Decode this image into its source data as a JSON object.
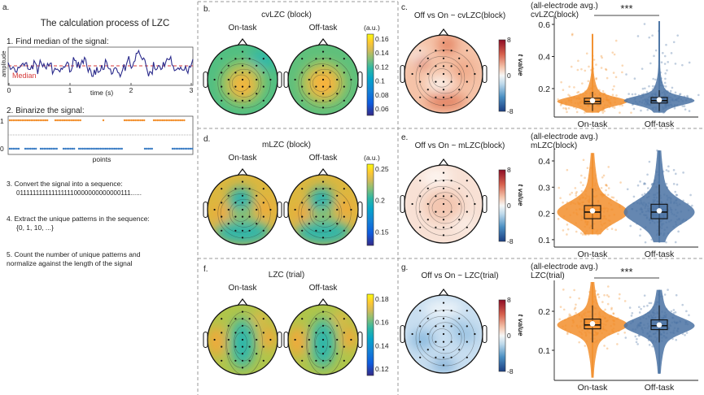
{
  "panel_a": {
    "label": "a.",
    "title": "The calculation process of LZC",
    "step1": "1. Find median of the signal:",
    "signal": {
      "ylabel": "amplitude",
      "median_label": "Median",
      "xlabel": "time (s)",
      "xticks": [
        "0",
        "1",
        "2",
        "3"
      ]
    },
    "step2": "2. Binarize the signal:",
    "binarize": {
      "yticks": [
        "1",
        "0"
      ],
      "xlabel": "points"
    },
    "step3": "3. Convert the signal into a sequence:",
    "step3_seq": "0111111111111111110000000000000111......",
    "step4": "4. Extract the unique patterns in the sequence:",
    "step4_set": "{0, 1, 10, ...}",
    "step5_l1": "5. Count the number of unique patterns and",
    "step5_l2": "normalize against the length of the signal"
  },
  "topo_panels": [
    {
      "label": "b.",
      "title": "cvLZC (block)",
      "on": "On-task",
      "off": "Off-task",
      "unit": "(a.u.)",
      "ticks": [
        "0.16",
        "0.14",
        "0.12",
        "0.1",
        "0.08",
        "0.06"
      ],
      "map": "cv"
    },
    {
      "label": "d.",
      "title": "mLZC (block)",
      "on": "On-task",
      "off": "Off-task",
      "unit": "(a.u.)",
      "ticks": [
        "0.25",
        "0.2",
        "0.15"
      ],
      "map": "m"
    },
    {
      "label": "f.",
      "title": "LZC (trial)",
      "on": "On-task",
      "off": "Off-task",
      "ticks": [
        "0.18",
        "0.16",
        "0.14",
        "0.12"
      ],
      "map": "lzc"
    }
  ],
  "diff_panels": [
    {
      "label": "c.",
      "title": "Off vs On ~ cvLZC(block)",
      "ticks": [
        "8",
        "0",
        "-8"
      ],
      "cbar_label": "t value",
      "map": "dc"
    },
    {
      "label": "e.",
      "title": "Off vs On ~ mLZC(block)",
      "ticks": [
        "8",
        "0",
        "-8"
      ],
      "cbar_label": "t value",
      "map": "de"
    },
    {
      "label": "g.",
      "title": "Off vs On ~ LZC(trial)",
      "ticks": [
        "8",
        "0",
        "-8"
      ],
      "cbar_label": "t value",
      "map": "dg"
    }
  ],
  "colors": {
    "on_task": "#f28e2b",
    "off_task": "#4a72a3",
    "median_line": "#d63a3a",
    "signal": "#2b2b8c"
  },
  "chart_data": [
    {
      "type": "violin",
      "title_l1": "(all-electrode avg.)",
      "title_l2": "cvLZC(block)",
      "categories": [
        "On-task",
        "Off-task"
      ],
      "yticks": [
        "0.2",
        "0.4",
        "0.6"
      ],
      "ylim": [
        0.02,
        0.66
      ],
      "significance": "***",
      "series": [
        {
          "name": "On-task",
          "min": 0.05,
          "q1": 0.105,
          "median": 0.12,
          "q3": 0.14,
          "whisker_low": 0.06,
          "whisker_high": 0.18,
          "mean": 0.125,
          "max": 0.54
        },
        {
          "name": "Off-task",
          "min": 0.05,
          "q1": 0.11,
          "median": 0.125,
          "q3": 0.145,
          "whisker_low": 0.06,
          "whisker_high": 0.19,
          "mean": 0.13,
          "max": 0.62
        }
      ]
    },
    {
      "type": "violin",
      "title_l1": "(all-electrode avg.)",
      "title_l2": "mLZC(block)",
      "categories": [
        "On-task",
        "Off-task"
      ],
      "yticks": [
        "0.1",
        "0.2",
        "0.3",
        "0.4"
      ],
      "ylim": [
        0.08,
        0.44
      ],
      "significance": "",
      "series": [
        {
          "name": "On-task",
          "min": 0.12,
          "q1": 0.18,
          "median": 0.205,
          "q3": 0.23,
          "whisker_low": 0.14,
          "whisker_high": 0.295,
          "mean": 0.21,
          "max": 0.43
        },
        {
          "name": "Off-task",
          "min": 0.09,
          "q1": 0.18,
          "median": 0.205,
          "q3": 0.235,
          "whisker_low": 0.115,
          "whisker_high": 0.31,
          "mean": 0.21,
          "max": 0.44
        }
      ]
    },
    {
      "type": "violin",
      "title_l1": "(all-electrode avg.)",
      "title_l2": "LZC(trial)",
      "categories": [
        "On-task",
        "Off-task"
      ],
      "yticks": [
        "0.1",
        "0.2"
      ],
      "ylim": [
        0.02,
        0.29
      ],
      "significance": "***",
      "series": [
        {
          "name": "On-task",
          "min": 0.03,
          "q1": 0.155,
          "median": 0.165,
          "q3": 0.18,
          "whisker_low": 0.12,
          "whisker_high": 0.215,
          "mean": 0.168,
          "max": 0.275
        },
        {
          "name": "Off-task",
          "min": 0.04,
          "q1": 0.153,
          "median": 0.163,
          "q3": 0.178,
          "whisker_low": 0.12,
          "whisker_high": 0.215,
          "mean": 0.165,
          "max": 0.255
        }
      ]
    }
  ]
}
